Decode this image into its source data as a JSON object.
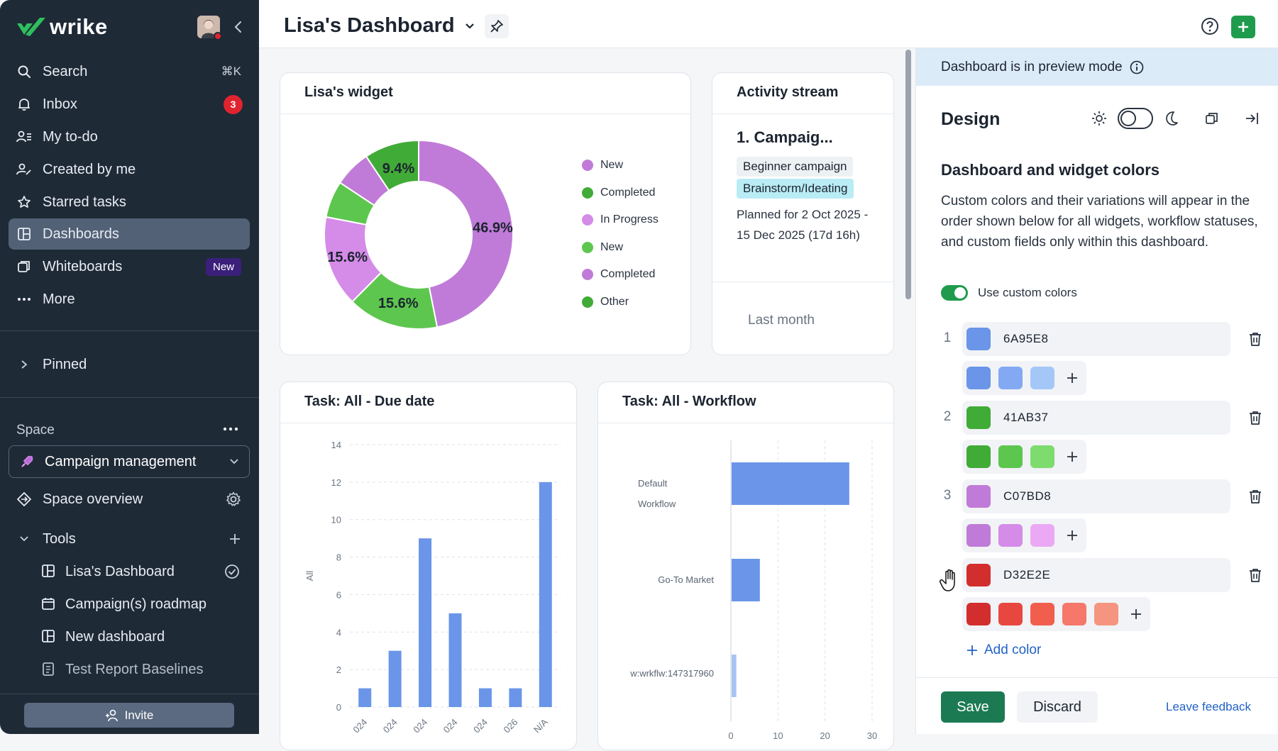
{
  "app": {
    "logo_text": "wrike"
  },
  "sidebar": {
    "items": [
      {
        "label": "Search",
        "shortcut": "⌘K"
      },
      {
        "label": "Inbox",
        "badge": "3"
      },
      {
        "label": "My to-do"
      },
      {
        "label": "Created by me"
      },
      {
        "label": "Starred tasks"
      },
      {
        "label": "Dashboards"
      },
      {
        "label": "Whiteboards",
        "badge": "New"
      },
      {
        "label": "More"
      }
    ],
    "pinned_label": "Pinned",
    "space_label": "Space",
    "space_selected": "Campaign management",
    "space_overview": "Space overview",
    "tools_label": "Tools",
    "tools": [
      {
        "label": "Lisa's Dashboard"
      },
      {
        "label": "Campaign(s) roadmap"
      },
      {
        "label": "New dashboard"
      },
      {
        "label": "Test Report Baselines"
      }
    ],
    "invite_label": "Invite"
  },
  "header": {
    "title": "Lisa's Dashboard"
  },
  "widgets": {
    "donut": {
      "title": "Lisa's widget",
      "labels": [
        "46.9%",
        "15.6%",
        "15.6%",
        "9.4%"
      ],
      "legend": [
        {
          "label": "New",
          "color": "#C07BD8"
        },
        {
          "label": "Completed",
          "color": "#41AB37"
        },
        {
          "label": "In Progress",
          "color": "#D58BE8"
        },
        {
          "label": "New",
          "color": "#5DC64E"
        },
        {
          "label": "Completed",
          "color": "#C07BD8"
        },
        {
          "label": "Other",
          "color": "#41AB37"
        }
      ]
    },
    "activity": {
      "title": "Activity stream",
      "item_title": "1. Campaig...",
      "tag1": "Beginner campaign",
      "tag2": "Brainstorm/Ideating",
      "planned": "Planned for 2 Oct 2025 - 15 Dec 2025 (17d 16h)",
      "month": "Last month"
    },
    "due_date": {
      "title": "Task: All - Due date"
    },
    "workflow": {
      "title": "Task: All - Workflow"
    }
  },
  "chart_data": [
    {
      "type": "pie",
      "title": "Lisa's widget",
      "categories": [
        "New",
        "Completed",
        "In Progress",
        "New",
        "Completed",
        "Other"
      ],
      "values": [
        46.9,
        15.6,
        15.6,
        6.3,
        6.3,
        9.4
      ]
    },
    {
      "type": "bar",
      "title": "Task: All - Due date",
      "ylabel": "All",
      "ylim": [
        0,
        14
      ],
      "yticks": [
        "0",
        "2",
        "4",
        "6",
        "8",
        "10",
        "12",
        "14"
      ],
      "categories": [
        "024",
        "024",
        "024",
        "024",
        "024",
        "026",
        "N/A"
      ],
      "values": [
        1,
        3,
        9,
        5,
        1,
        1,
        12
      ]
    },
    {
      "type": "bar",
      "orientation": "horizontal",
      "title": "Task: All - Workflow",
      "categories": [
        "Default Workflow",
        "Go-To Market",
        "w:wrkflw:147317960"
      ],
      "values": [
        25,
        6,
        1
      ],
      "xlim": [
        0,
        30
      ],
      "xticks": [
        "0",
        "10",
        "20",
        "30"
      ]
    }
  ],
  "panel": {
    "preview_text": "Dashboard is in preview mode",
    "design_title": "Design",
    "section_title": "Dashboard and widget colors",
    "description": "Custom colors and their variations will appear in the order shown below for all widgets, workflow statuses, and custom fields only within this dashboard.",
    "use_custom_label": "Use custom colors",
    "colors": [
      {
        "index": "1",
        "hex": "6A95E8",
        "swatch": "#6A95E8",
        "variations": [
          "#6A95E8",
          "#83A9F2",
          "#A4C7F8"
        ]
      },
      {
        "index": "2",
        "hex": "41AB37",
        "swatch": "#41AB37",
        "variations": [
          "#41AB37",
          "#5DC64E",
          "#7EDB6E"
        ]
      },
      {
        "index": "3",
        "hex": "C07BD8",
        "swatch": "#C07BD8",
        "variations": [
          "#C07BD8",
          "#D58BE8",
          "#EBA8F5"
        ]
      },
      {
        "index": "",
        "hex": "D32E2E",
        "swatch": "#D32E2E",
        "variations": [
          "#D32E2E",
          "#E8473F",
          "#F25E4E",
          "#F5786A",
          "#F59580"
        ]
      }
    ],
    "add_color_label": "Add color",
    "save_label": "Save",
    "discard_label": "Discard",
    "feedback_label": "Leave feedback"
  }
}
